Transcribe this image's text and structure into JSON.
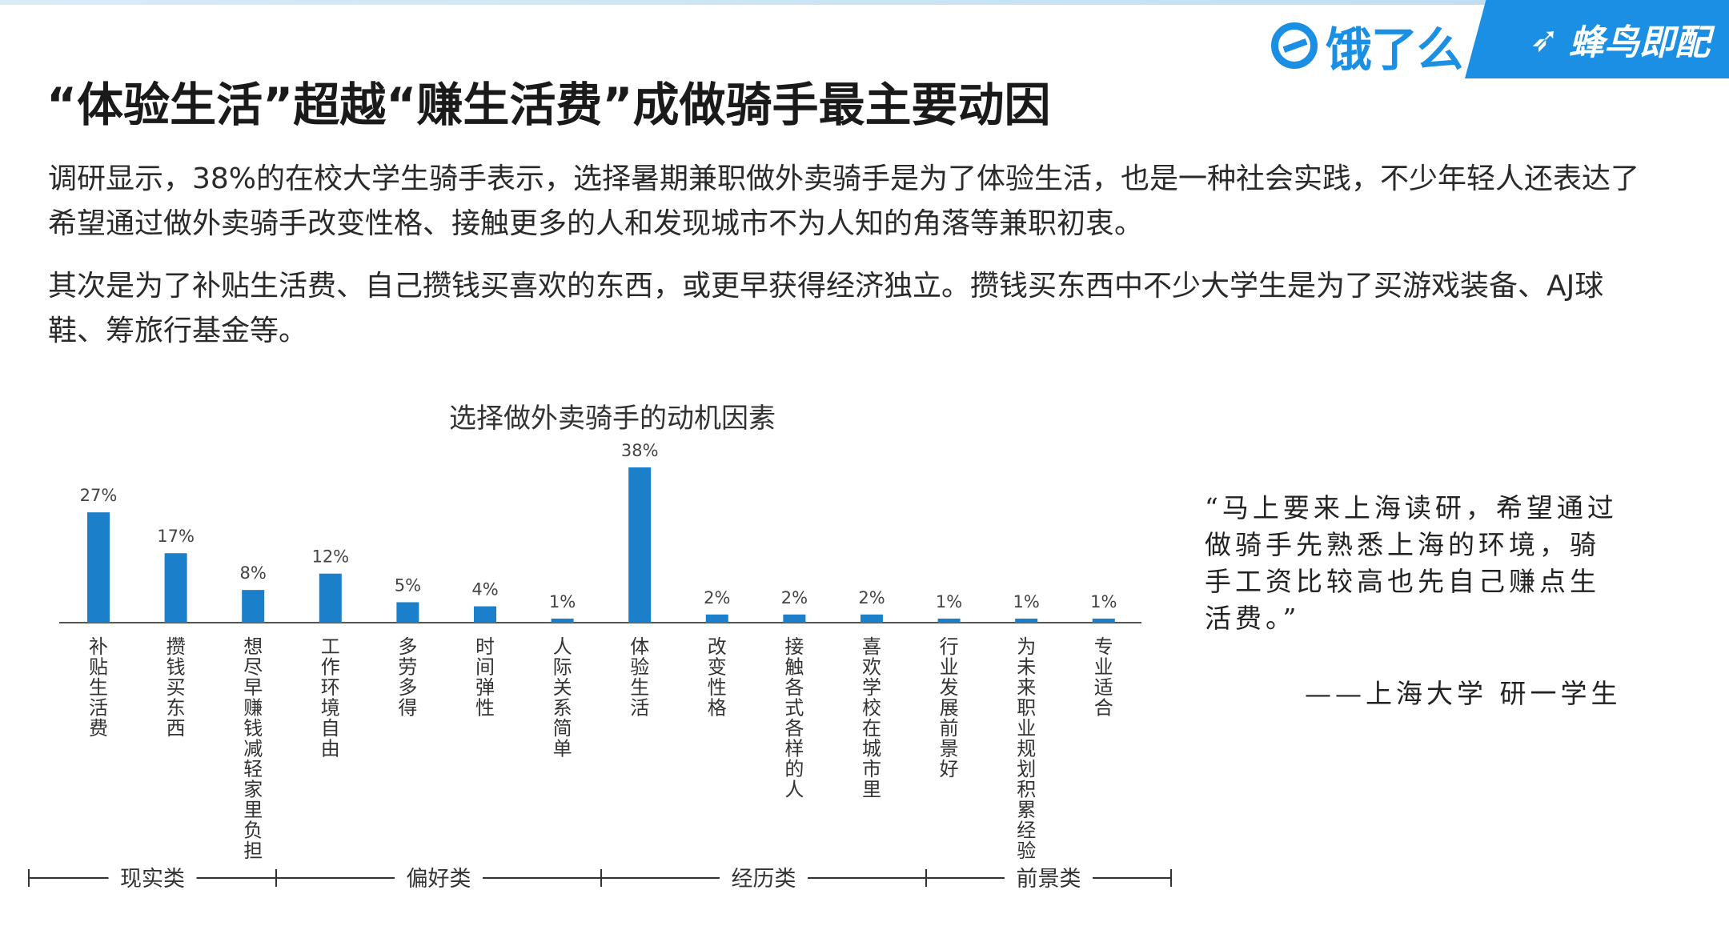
{
  "header": {
    "brand_eleme": "饿了么",
    "brand_fengniao": "蜂鸟即配",
    "accent_color": "#1a8fe3"
  },
  "title": "“体验生活”超越“赚生活费”成做骑手最主要动因",
  "paragraphs": [
    "调研显示，38%的在校大学生骑手表示，选择暑期兼职做外卖骑手是为了体验生活，也是一种社会实践，不少年轻人还表达了希望通过做外卖骑手改变性格、接触更多的人和发现城市不为人知的角落等兼职初衷。",
    "其次是为了补贴生活费、自己攒钱买喜欢的东西，或更早获得经济独立。攒钱买东西中不少大学生是为了买游戏装备、AJ球鞋、筹旅行基金等。"
  ],
  "quote": {
    "text": "“马上要来上海读研，希望通过做骑手先熟悉上海的环境，骑手工资比较高也先自己赚点生活费。”",
    "source": "——上海大学 研一学生"
  },
  "chart_data": {
    "type": "bar",
    "title": "选择做外卖骑手的动机因素",
    "categories": [
      "补贴生活费",
      "攒钱买东西",
      "想尽早赚钱减轻家里负担",
      "工作环境自由",
      "多劳多得",
      "时间弹性",
      "人际关系简单",
      "体验生活",
      "改变性格",
      "接触各式各样的人",
      "喜欢学校在城市里",
      "行业发展前景好",
      "为未来职业规划积累经验",
      "专业适合"
    ],
    "values": [
      27,
      17,
      8,
      12,
      5,
      4,
      1,
      38,
      2,
      2,
      2,
      1,
      1,
      1
    ],
    "value_labels": [
      "27%",
      "17%",
      "8%",
      "12%",
      "5%",
      "4%",
      "1%",
      "38%",
      "2%",
      "2%",
      "2%",
      "1%",
      "1%",
      "1%"
    ],
    "unit": "%",
    "groups": [
      {
        "name": "现实类",
        "categories": [
          0,
          1,
          2
        ]
      },
      {
        "name": "偏好类",
        "categories": [
          3,
          4,
          5,
          6
        ]
      },
      {
        "name": "经历类",
        "categories": [
          7,
          8,
          9,
          10
        ]
      },
      {
        "name": "前景类",
        "categories": [
          11,
          12,
          13
        ]
      }
    ],
    "bar_color": "#1b7fc9",
    "ylim": [
      0,
      38
    ],
    "grid": false,
    "legend": "none"
  }
}
